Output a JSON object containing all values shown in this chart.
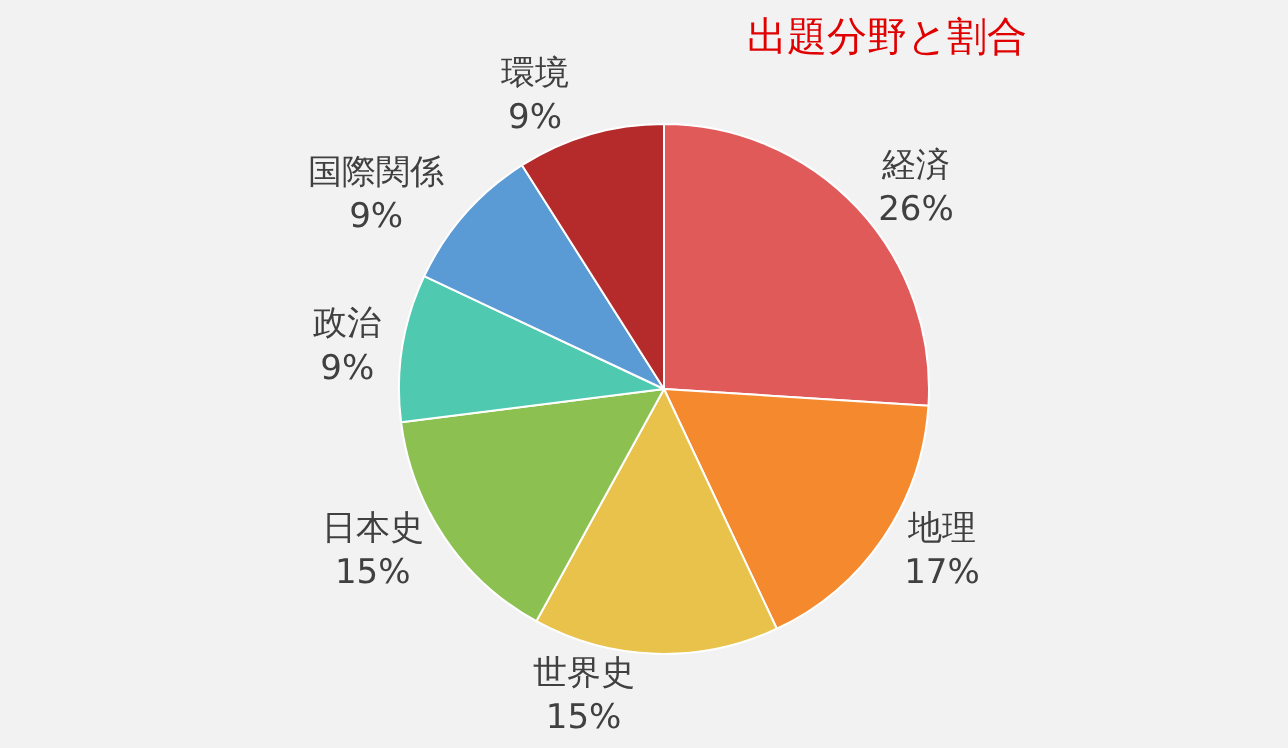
{
  "chart_data": {
    "type": "pie",
    "title": "出題分野と割合",
    "categories": [
      "経済",
      "地理",
      "世界史",
      "日本史",
      "政治",
      "国際関係",
      "環境"
    ],
    "values": [
      26,
      17,
      15,
      15,
      9,
      9,
      9
    ],
    "value_labels": [
      "26%",
      "17%",
      "15%",
      "15%",
      "9%",
      "9%",
      "9%"
    ],
    "colors": [
      "#e05a5a",
      "#f4892e",
      "#e8c24a",
      "#8cc152",
      "#4fc9b0",
      "#5b9bd5",
      "#b52a2a"
    ],
    "legend": false
  }
}
